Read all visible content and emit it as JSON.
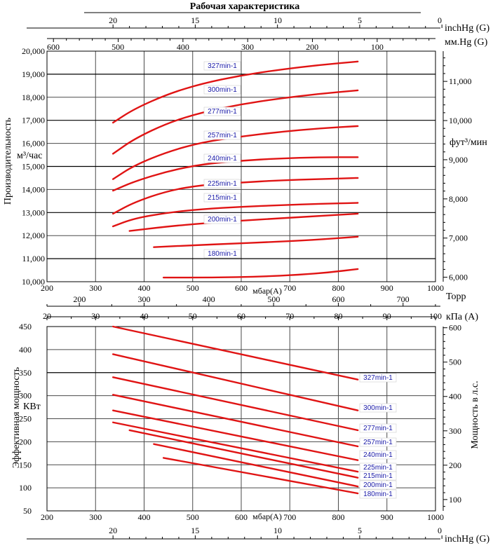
{
  "page_title": "Рабочая характеристика",
  "colors": {
    "curve": "#e01414",
    "label_text": "#1a1aa8",
    "grid": "#4a4a4a"
  },
  "chart_data": [
    {
      "type": "line",
      "xlabel": "мбар(A)",
      "ylabel": "Производительность",
      "ylabel_unit": "м³/час",
      "xlim": [
        200,
        1000
      ],
      "ylim": [
        10000,
        20000
      ],
      "x_ticks": [
        "200",
        "300",
        "400",
        "500",
        "600",
        "700",
        "800",
        "900",
        "1000"
      ],
      "y_ticks": [
        "10,000",
        "11,000",
        "12,000",
        "13,000",
        "14,000",
        "15,000",
        "16,000",
        "17,000",
        "18,000",
        "19,000",
        "20,000"
      ],
      "top_axis_1": {
        "label": "inchHg (G)",
        "ticks": [
          "20",
          "15",
          "10",
          "5",
          "0"
        ],
        "positions_mbar": [
          336,
          505,
          675,
          844,
          1013
        ]
      },
      "top_axis_2": {
        "label": "мм.Hg (G)",
        "ticks": [
          "600",
          "500",
          "400",
          "300",
          "200",
          "100"
        ],
        "positions_mbar": [
          213,
          346,
          480,
          613,
          746,
          880
        ]
      },
      "right_axis": {
        "label": "фут³/мин",
        "ticks": [
          "6,000",
          "7,000",
          "8,000",
          "9,000",
          "10,000",
          "11,000"
        ],
        "positions_m3h": [
          10194,
          11893,
          13592,
          15291,
          16990,
          18689
        ]
      },
      "series": [
        {
          "name": "327min-1",
          "x": [
            336,
            380,
            450,
            520,
            600,
            680,
            760,
            840
          ],
          "y": [
            16900,
            17500,
            18150,
            18600,
            18950,
            19200,
            19400,
            19550
          ]
        },
        {
          "name": "300min-1",
          "x": [
            336,
            380,
            450,
            520,
            600,
            680,
            760,
            840
          ],
          "y": [
            15550,
            16200,
            16900,
            17350,
            17700,
            17950,
            18150,
            18300
          ]
        },
        {
          "name": "277min-1",
          "x": [
            336,
            380,
            450,
            520,
            600,
            680,
            760,
            840
          ],
          "y": [
            14450,
            15050,
            15650,
            16050,
            16300,
            16500,
            16650,
            16750
          ]
        },
        {
          "name": "257min-1",
          "x": [
            336,
            380,
            450,
            520,
            600,
            680,
            760,
            840
          ],
          "y": [
            13950,
            14350,
            14800,
            15100,
            15250,
            15350,
            15400,
            15400
          ]
        },
        {
          "name": "240min-1",
          "x": [
            336,
            380,
            450,
            520,
            600,
            680,
            760,
            840
          ],
          "y": [
            12950,
            13450,
            13950,
            14200,
            14300,
            14400,
            14450,
            14500
          ]
        },
        {
          "name": "225min-1",
          "x": [
            336,
            380,
            450,
            520,
            600,
            680,
            760,
            840
          ],
          "y": [
            12400,
            12750,
            13000,
            13150,
            13250,
            13320,
            13380,
            13420
          ]
        },
        {
          "name": "215min-1",
          "x": [
            370,
            450,
            520,
            600,
            680,
            760,
            840
          ],
          "y": [
            12200,
            12400,
            12530,
            12650,
            12750,
            12850,
            12950
          ]
        },
        {
          "name": "200min-1",
          "x": [
            420,
            500,
            580,
            660,
            740,
            840
          ],
          "y": [
            11500,
            11580,
            11650,
            11720,
            11800,
            11950
          ]
        },
        {
          "name": "180min-1",
          "x": [
            440,
            540,
            640,
            720,
            780,
            840
          ],
          "y": [
            10180,
            10180,
            10220,
            10300,
            10400,
            10550
          ]
        }
      ]
    },
    {
      "type": "line",
      "xlabel": "мбар(A)",
      "ylabel": "Эффективная мощность",
      "ylabel_unit": "КВт",
      "xlim": [
        200,
        1000
      ],
      "ylim": [
        50,
        450
      ],
      "x_ticks": [
        "200",
        "300",
        "400",
        "500",
        "600",
        "700",
        "800",
        "900",
        "1000"
      ],
      "y_ticks": [
        "50",
        "100",
        "150",
        "200",
        "250",
        "300",
        "350",
        "400",
        "450"
      ],
      "top_axis_1": {
        "label": "Торр",
        "ticks": [
          "200",
          "300",
          "400",
          "500",
          "600",
          "700"
        ],
        "positions_mbar": [
          267,
          400,
          533,
          667,
          800,
          933
        ]
      },
      "top_axis_2": {
        "label": "кПа (A)",
        "ticks": [
          "20",
          "30",
          "40",
          "50",
          "60",
          "70",
          "80",
          "90",
          "100"
        ],
        "positions_mbar": [
          200,
          300,
          400,
          500,
          600,
          700,
          800,
          900,
          1000
        ]
      },
      "right_axis": {
        "label": "Мощность в л.с.",
        "ticks": [
          "100",
          "200",
          "300",
          "400",
          "500",
          "600"
        ],
        "positions_kw": [
          74.6,
          149.1,
          223.7,
          298.3,
          372.9,
          447.4
        ]
      },
      "bottom_axis_2": {
        "label": "inchHg (G)",
        "ticks": [
          "20",
          "15",
          "10",
          "5",
          "0"
        ],
        "positions_mbar": [
          336,
          505,
          675,
          844,
          1013
        ]
      },
      "series": [
        {
          "name": "327min-1",
          "x": [
            336,
            840
          ],
          "y": [
            450,
            335
          ]
        },
        {
          "name": "300min-1",
          "x": [
            336,
            840
          ],
          "y": [
            390,
            268
          ]
        },
        {
          "name": "277min-1",
          "x": [
            336,
            840
          ],
          "y": [
            340,
            225
          ]
        },
        {
          "name": "257min-1",
          "x": [
            336,
            840
          ],
          "y": [
            302,
            190
          ]
        },
        {
          "name": "240min-1",
          "x": [
            336,
            840
          ],
          "y": [
            268,
            160
          ]
        },
        {
          "name": "225min-1",
          "x": [
            336,
            840
          ],
          "y": [
            242,
            135
          ]
        },
        {
          "name": "215min-1",
          "x": [
            370,
            840
          ],
          "y": [
            225,
            122
          ]
        },
        {
          "name": "200min-1",
          "x": [
            420,
            840
          ],
          "y": [
            195,
            103
          ]
        },
        {
          "name": "180min-1",
          "x": [
            440,
            840
          ],
          "y": [
            165,
            88
          ]
        }
      ]
    }
  ]
}
